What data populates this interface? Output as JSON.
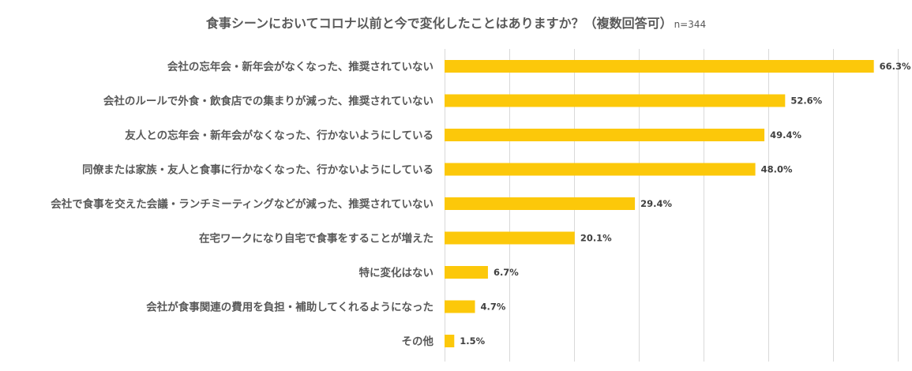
{
  "chart_data": {
    "type": "bar",
    "orientation": "horizontal",
    "title": "食事シーンにおいてコロナ以前と今で変化したことはありますか？（複数回答可）",
    "sample_note": "n=344",
    "categories": [
      "会社の忘年会・新年会がなくなった、推奨されていない",
      "会社のルールで外食・飲食店での集まりが減った、推奨されていない",
      "友人との忘年会・新年会がなくなった、行かないようにしている",
      "同僚または家族・友人と食事に行かなくなった、行かないようにしている",
      "会社で食事を交えた会議・ランチミーティングなどが減った、推奨されていない",
      "在宅ワークになり自宅で食事をすることが増えた",
      "特に変化はない",
      "会社が食事関連の費用を負担・補助してくれるようになった",
      "その他"
    ],
    "values": [
      66.3,
      52.6,
      49.4,
      48.0,
      29.4,
      20.1,
      6.7,
      4.7,
      1.5
    ],
    "value_labels": [
      "66.3%",
      "52.6%",
      "49.4%",
      "48.0%",
      "29.4%",
      "20.1%",
      "6.7%",
      "4.7%",
      "1.5%"
    ],
    "xlim": [
      0,
      70
    ],
    "grid": true,
    "bar_color": "#FCC80A",
    "grid_color": "#D9D9D9"
  }
}
